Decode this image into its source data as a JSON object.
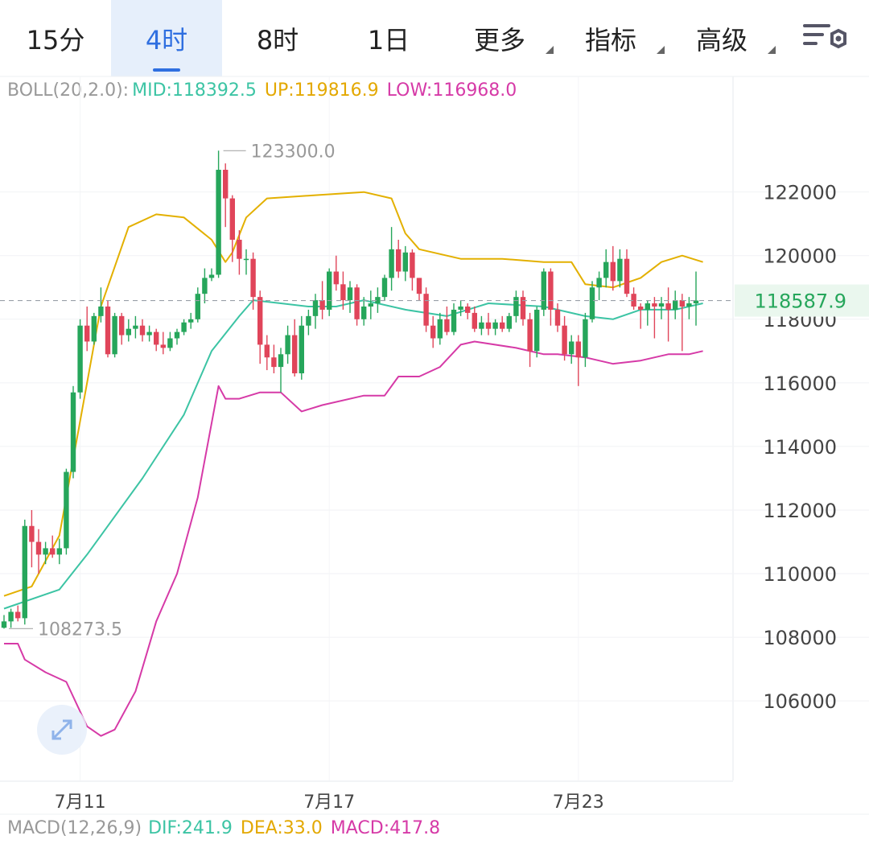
{
  "tabs": [
    {
      "label": "15分",
      "active": false,
      "dropdown": false
    },
    {
      "label": "4时",
      "active": true,
      "dropdown": false
    },
    {
      "label": "8时",
      "active": false,
      "dropdown": false
    },
    {
      "label": "1日",
      "active": false,
      "dropdown": false
    },
    {
      "label": "更多",
      "active": false,
      "dropdown": true
    },
    {
      "label": "指标",
      "active": false,
      "dropdown": true
    },
    {
      "label": "高级",
      "active": false,
      "dropdown": true
    }
  ],
  "settings_icon": "chart-settings-icon",
  "boll": {
    "label": "BOLL(20,2.0):",
    "mid": "MID:118392.5",
    "up": "UP:119816.9",
    "low": "LOW:116968.0"
  },
  "macd": {
    "label": "MACD(12,26,9)",
    "dif": "DIF:241.9",
    "dea": "DEA:33.0",
    "macd": "MACD:417.8"
  },
  "colors": {
    "up": "#26a65b",
    "down": "#e0455a",
    "mid": "#3cc4a4",
    "upper": "#e3b000",
    "lower": "#d63aa7",
    "accent": "#2f6fe0"
  },
  "chart_data": {
    "type": "candlestick",
    "y_ticks": [
      106000,
      108000,
      110000,
      112000,
      114000,
      116000,
      118000,
      120000,
      122000
    ],
    "y_tick_labels": [
      "106000",
      "108000",
      "110000",
      "112000",
      "114000",
      "116000",
      "118000",
      "120000",
      "122000"
    ],
    "ylim": [
      103500,
      124800
    ],
    "x_labels": [
      "7月11",
      "7月17",
      "7月23"
    ],
    "x_label_index": [
      11,
      47,
      83
    ],
    "current_price": 118587.9,
    "current_price_label": "118587.9",
    "max_marker": {
      "index": 31,
      "value": 123300.0,
      "label": "123300.0"
    },
    "min_marker": {
      "index": 0,
      "value": 108273.5,
      "label": "108273.5"
    },
    "grid": true,
    "ohlc": [
      [
        108300,
        108700,
        108273.5,
        108500
      ],
      [
        108500,
        108900,
        108300,
        108800
      ],
      [
        108800,
        109000,
        108500,
        108600
      ],
      [
        108600,
        111700,
        108400,
        111500
      ],
      [
        111500,
        112000,
        110200,
        111000
      ],
      [
        111000,
        111400,
        110000,
        110600
      ],
      [
        110600,
        111000,
        110300,
        110800
      ],
      [
        110800,
        111200,
        110500,
        110600
      ],
      [
        110600,
        111100,
        110300,
        110800
      ],
      [
        110800,
        113300,
        110600,
        113200
      ],
      [
        113200,
        115900,
        113000,
        115700
      ],
      [
        115700,
        118000,
        115500,
        117800
      ],
      [
        117800,
        118400,
        117000,
        117300
      ],
      [
        117300,
        118200,
        117200,
        118100
      ],
      [
        118100,
        119000,
        117900,
        118400
      ],
      [
        118400,
        118600,
        116800,
        116900
      ],
      [
        116900,
        118200,
        116800,
        118100
      ],
      [
        118100,
        118200,
        117200,
        117500
      ],
      [
        117500,
        118000,
        117300,
        117700
      ],
      [
        117700,
        118100,
        117400,
        117800
      ],
      [
        117800,
        118000,
        117300,
        117500
      ],
      [
        117500,
        117800,
        117300,
        117600
      ],
      [
        117600,
        117700,
        117000,
        117200
      ],
      [
        117200,
        117600,
        116900,
        117100
      ],
      [
        117100,
        117600,
        117000,
        117400
      ],
      [
        117400,
        117700,
        117200,
        117600
      ],
      [
        117600,
        118000,
        117500,
        117900
      ],
      [
        117900,
        118200,
        117700,
        118000
      ],
      [
        118000,
        119000,
        117900,
        118800
      ],
      [
        118800,
        119600,
        118500,
        119300
      ],
      [
        119300,
        119600,
        119200,
        119400
      ],
      [
        119400,
        123300,
        119300,
        122700
      ],
      [
        122700,
        122900,
        120900,
        121800
      ],
      [
        121800,
        121900,
        119800,
        120500
      ],
      [
        120500,
        120800,
        119400,
        119900
      ],
      [
        119900,
        120200,
        119400,
        119900
      ],
      [
        119900,
        120100,
        118300,
        118700
      ],
      [
        118700,
        118900,
        116600,
        117200
      ],
      [
        117200,
        117500,
        116400,
        116800
      ],
      [
        116800,
        117200,
        116300,
        116500
      ],
      [
        116500,
        117100,
        115700,
        116900
      ],
      [
        116900,
        117800,
        116600,
        117500
      ],
      [
        117500,
        118000,
        116200,
        116300
      ],
      [
        116300,
        118100,
        116100,
        117800
      ],
      [
        117800,
        118300,
        117500,
        118100
      ],
      [
        118100,
        118800,
        117700,
        118600
      ],
      [
        118600,
        119200,
        118000,
        118300
      ],
      [
        118300,
        119600,
        118100,
        119500
      ],
      [
        119500,
        120000,
        118900,
        119100
      ],
      [
        119100,
        119500,
        118300,
        118600
      ],
      [
        118600,
        119200,
        118200,
        119000
      ],
      [
        119000,
        119100,
        117800,
        118000
      ],
      [
        118000,
        118700,
        117800,
        118400
      ],
      [
        118400,
        118900,
        118000,
        118500
      ],
      [
        118500,
        119000,
        118200,
        118700
      ],
      [
        118700,
        119400,
        118600,
        119300
      ],
      [
        119300,
        120900,
        118900,
        120200
      ],
      [
        120200,
        120500,
        119300,
        119500
      ],
      [
        119500,
        120300,
        119200,
        120100
      ],
      [
        120100,
        120200,
        118900,
        119300
      ],
      [
        119300,
        119300,
        118600,
        118800
      ],
      [
        118800,
        119000,
        117600,
        117800
      ],
      [
        117800,
        118100,
        117100,
        117400
      ],
      [
        117400,
        118200,
        117200,
        118000
      ],
      [
        118000,
        118400,
        117500,
        117600
      ],
      [
        117600,
        118500,
        117500,
        118300
      ],
      [
        118300,
        118600,
        118100,
        118400
      ],
      [
        118400,
        118500,
        118000,
        118200
      ],
      [
        118200,
        118400,
        117600,
        117700
      ],
      [
        117700,
        118100,
        117500,
        117900
      ],
      [
        117900,
        118200,
        117500,
        117700
      ],
      [
        117700,
        118000,
        117500,
        117900
      ],
      [
        117900,
        118100,
        117600,
        117700
      ],
      [
        117700,
        118200,
        117600,
        118100
      ],
      [
        118100,
        118900,
        117900,
        118700
      ],
      [
        118700,
        118900,
        117800,
        118000
      ],
      [
        118000,
        118200,
        116500,
        117000
      ],
      [
        117000,
        118400,
        116800,
        118300
      ],
      [
        118300,
        119600,
        118100,
        119500
      ],
      [
        119500,
        119600,
        117800,
        118300
      ],
      [
        118300,
        118500,
        117600,
        117800
      ],
      [
        117800,
        118100,
        116700,
        116900
      ],
      [
        116900,
        117500,
        116600,
        117300
      ],
      [
        117300,
        117500,
        115900,
        116800
      ],
      [
        116800,
        118200,
        116500,
        118000
      ],
      [
        118000,
        119200,
        117900,
        119000
      ],
      [
        119000,
        119500,
        118600,
        119300
      ],
      [
        119300,
        120200,
        119000,
        119800
      ],
      [
        119800,
        120300,
        118900,
        119200
      ],
      [
        119200,
        120200,
        119000,
        119900
      ],
      [
        119900,
        120200,
        118700,
        118800
      ],
      [
        118800,
        119000,
        118300,
        118400
      ],
      [
        118400,
        118500,
        117700,
        118300
      ],
      [
        118300,
        118600,
        117800,
        118500
      ],
      [
        118500,
        118700,
        117400,
        118400
      ],
      [
        118400,
        118700,
        118000,
        118500
      ],
      [
        118500,
        119000,
        117300,
        118300
      ],
      [
        118300,
        118900,
        118000,
        118600
      ],
      [
        118600,
        118800,
        117000,
        118400
      ],
      [
        118400,
        118700,
        118000,
        118500
      ],
      [
        118500,
        119500,
        117800,
        118587.9
      ]
    ],
    "boll_mid": [
      [
        0,
        108900
      ],
      [
        8,
        109500
      ],
      [
        12,
        110600
      ],
      [
        20,
        113000
      ],
      [
        26,
        115000
      ],
      [
        30,
        117000
      ],
      [
        34,
        118100
      ],
      [
        36,
        118600
      ],
      [
        40,
        118500
      ],
      [
        44,
        118400
      ],
      [
        48,
        118400
      ],
      [
        52,
        118600
      ],
      [
        58,
        118300
      ],
      [
        64,
        118100
      ],
      [
        70,
        118500
      ],
      [
        78,
        118400
      ],
      [
        84,
        118100
      ],
      [
        88,
        118000
      ],
      [
        92,
        118300
      ],
      [
        97,
        118300
      ],
      [
        101,
        118500
      ]
    ],
    "boll_up": [
      [
        0,
        109300
      ],
      [
        4,
        109600
      ],
      [
        8,
        111200
      ],
      [
        11,
        114800
      ],
      [
        14,
        118400
      ],
      [
        18,
        120900
      ],
      [
        22,
        121300
      ],
      [
        26,
        121200
      ],
      [
        30,
        120500
      ],
      [
        32,
        119800
      ],
      [
        33,
        120100
      ],
      [
        35,
        121200
      ],
      [
        38,
        121800
      ],
      [
        45,
        121900
      ],
      [
        52,
        122000
      ],
      [
        56,
        121800
      ],
      [
        58,
        120700
      ],
      [
        60,
        120200
      ],
      [
        66,
        119900
      ],
      [
        72,
        119900
      ],
      [
        78,
        119800
      ],
      [
        82,
        119800
      ],
      [
        84,
        119100
      ],
      [
        88,
        119000
      ],
      [
        92,
        119300
      ],
      [
        95,
        119800
      ],
      [
        98,
        120000
      ],
      [
        101,
        119800
      ]
    ],
    "boll_low": [
      [
        0,
        107800
      ],
      [
        2,
        107800
      ],
      [
        3,
        107300
      ],
      [
        6,
        106900
      ],
      [
        9,
        106600
      ],
      [
        12,
        105200
      ],
      [
        14,
        104900
      ],
      [
        16,
        105100
      ],
      [
        19,
        106300
      ],
      [
        22,
        108500
      ],
      [
        25,
        110000
      ],
      [
        28,
        112400
      ],
      [
        31,
        115900
      ],
      [
        32,
        115500
      ],
      [
        34,
        115500
      ],
      [
        37,
        115700
      ],
      [
        40,
        115700
      ],
      [
        43,
        115100
      ],
      [
        46,
        115300
      ],
      [
        52,
        115600
      ],
      [
        55,
        115600
      ],
      [
        57,
        116200
      ],
      [
        60,
        116200
      ],
      [
        63,
        116500
      ],
      [
        66,
        117200
      ],
      [
        68,
        117300
      ],
      [
        74,
        117100
      ],
      [
        78,
        116900
      ],
      [
        80,
        116900
      ],
      [
        84,
        116800
      ],
      [
        88,
        116600
      ],
      [
        92,
        116700
      ],
      [
        96,
        116900
      ],
      [
        99,
        116900
      ],
      [
        101,
        117000
      ]
    ]
  }
}
